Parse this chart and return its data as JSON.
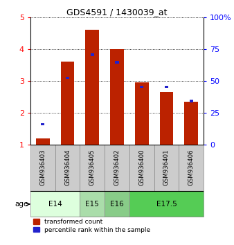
{
  "title": "GDS4591 / 1430039_at",
  "samples": [
    "GSM936403",
    "GSM936404",
    "GSM936405",
    "GSM936402",
    "GSM936400",
    "GSM936401",
    "GSM936406"
  ],
  "red_values": [
    1.2,
    3.6,
    4.6,
    4.0,
    2.95,
    2.65,
    2.35
  ],
  "blue_values": [
    1.65,
    3.1,
    3.83,
    3.58,
    2.82,
    2.82,
    2.38
  ],
  "red_color": "#bb2200",
  "blue_color": "#2222cc",
  "ylim_left": [
    1,
    5
  ],
  "ylim_right": [
    0,
    100
  ],
  "yticks_left": [
    1,
    2,
    3,
    4,
    5
  ],
  "yticks_right": [
    0,
    25,
    50,
    75,
    100
  ],
  "age_groups": [
    {
      "label": "E14",
      "start": 0,
      "end": 2,
      "color": "#ddffdd"
    },
    {
      "label": "E15",
      "start": 2,
      "end": 3,
      "color": "#aaddaa"
    },
    {
      "label": "E16",
      "start": 3,
      "end": 4,
      "color": "#88cc88"
    },
    {
      "label": "E17.5",
      "start": 4,
      "end": 7,
      "color": "#55cc55"
    }
  ],
  "sample_box_color": "#cccccc",
  "sample_box_edge": "#888888",
  "bar_width": 0.55,
  "blue_marker_size": 0.08
}
